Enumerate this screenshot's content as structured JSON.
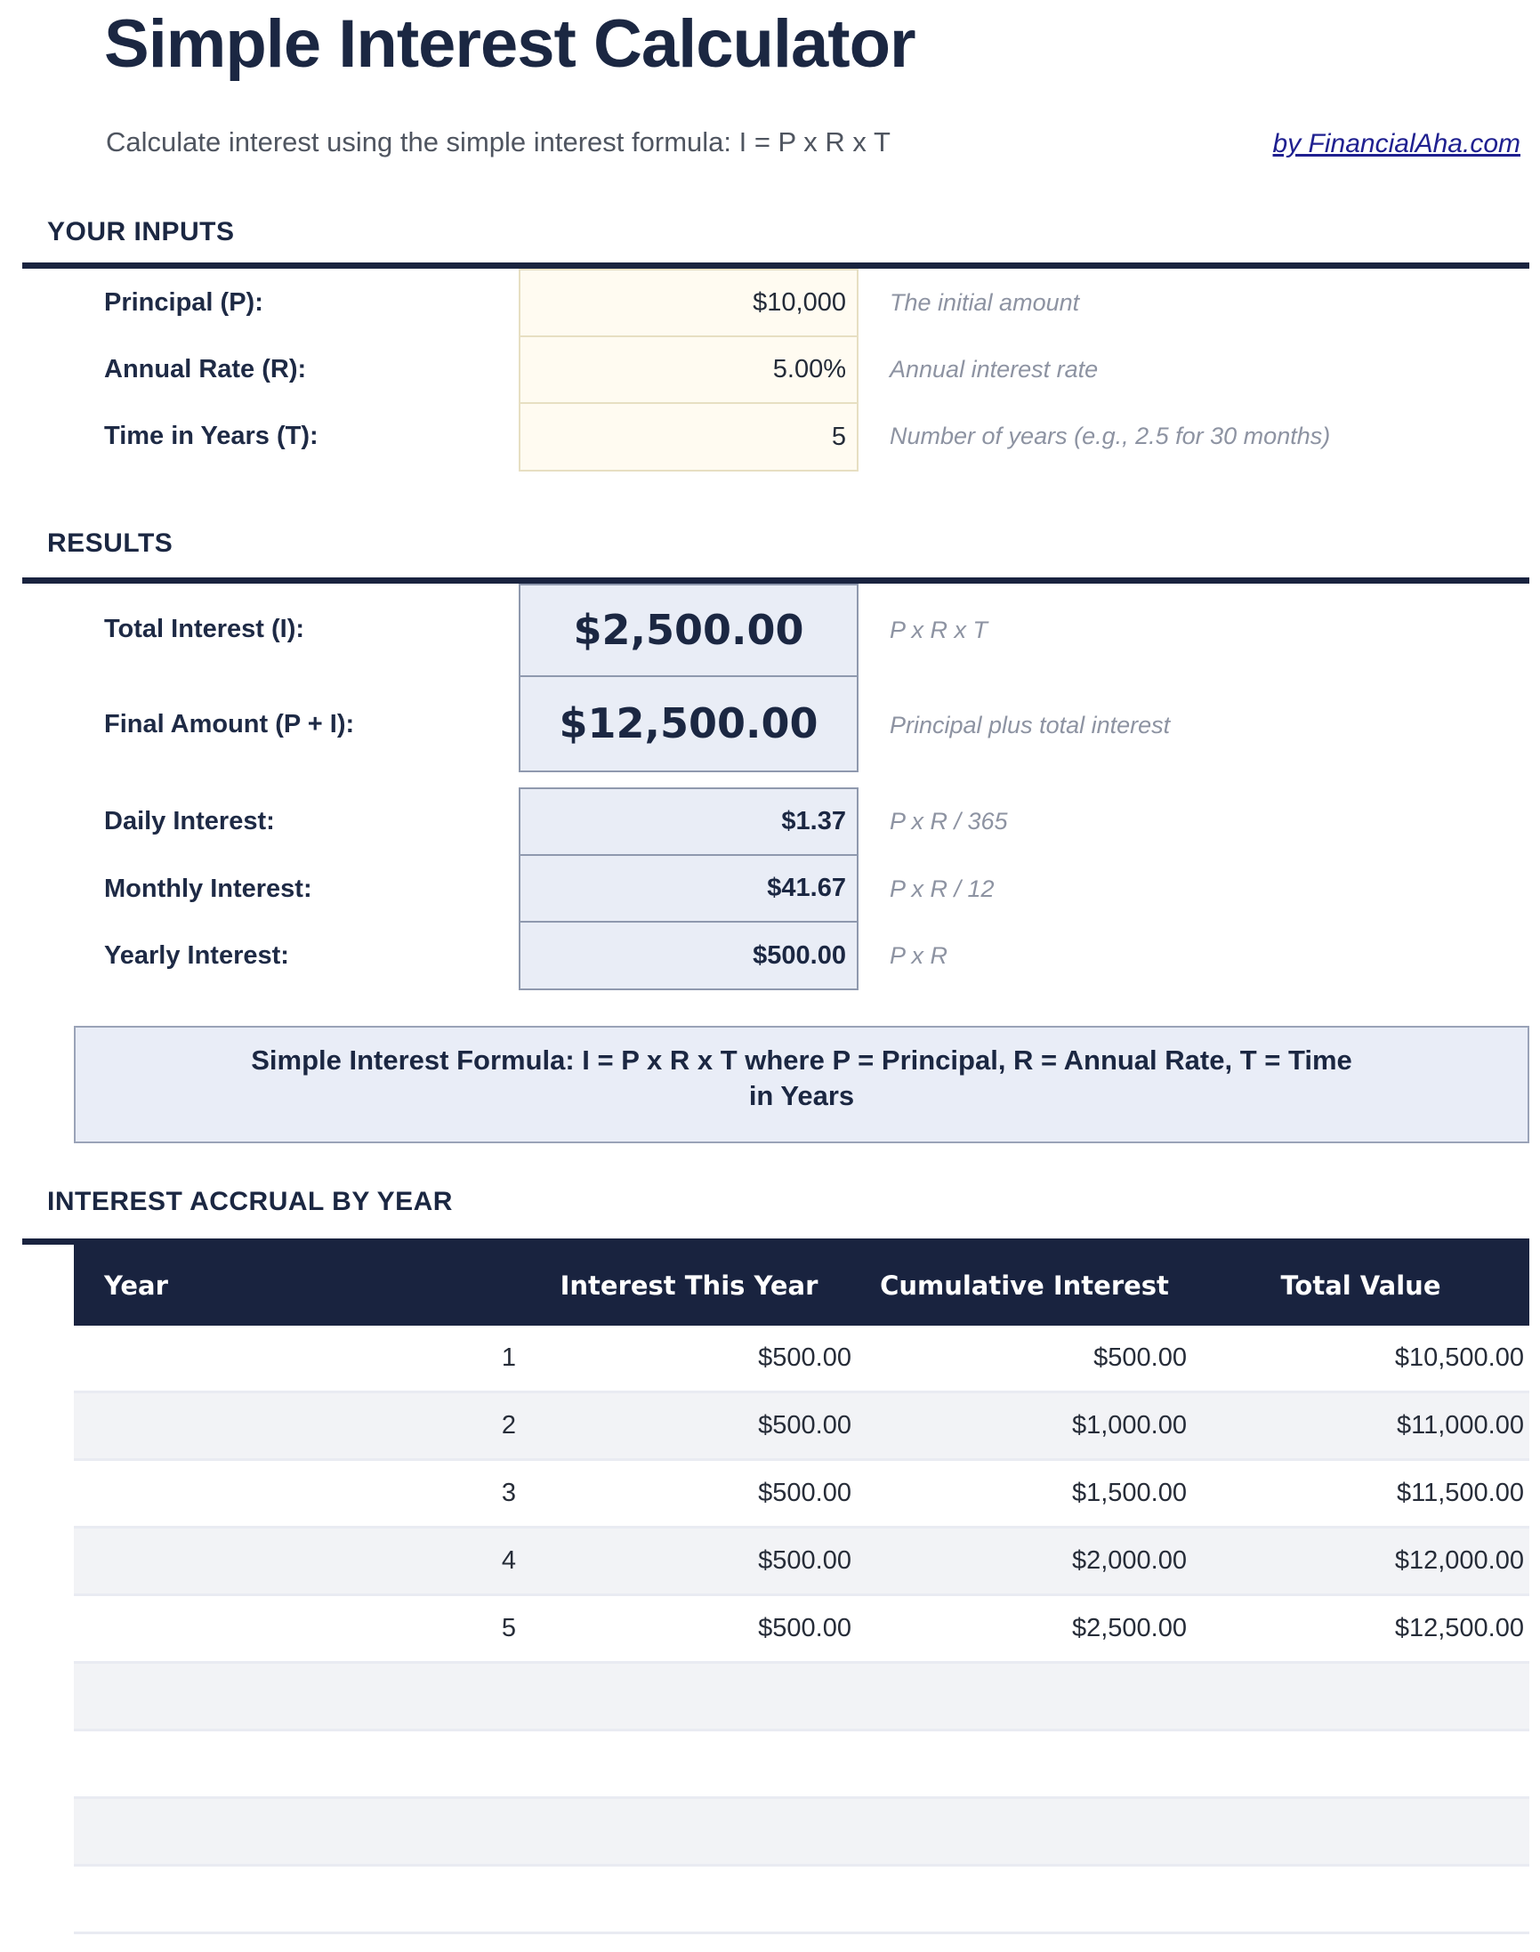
{
  "page": {
    "title": "Simple Interest Calculator",
    "subtitle": "Calculate interest using the simple interest formula: I = P x R x T",
    "credit_link": "by FinancialAha.com"
  },
  "inputs_section": {
    "heading": "YOUR INPUTS",
    "rows": [
      {
        "label": "Principal (P):",
        "value": "$10,000",
        "hint": "The initial amount"
      },
      {
        "label": "Annual Rate (R):",
        "value": "5.00%",
        "hint": "Annual interest rate"
      },
      {
        "label": "Time in Years (T):",
        "value": "5",
        "hint": "Number of years (e.g., 2.5 for 30 months)"
      }
    ]
  },
  "results_section": {
    "heading": "RESULTS",
    "primary": [
      {
        "label": "Total Interest (I):",
        "value": "$2,500.00",
        "hint": "P x R x T"
      },
      {
        "label": "Final Amount (P + I):",
        "value": "$12,500.00",
        "hint": "Principal plus total interest"
      }
    ],
    "secondary": [
      {
        "label": "Daily Interest:",
        "value": "$1.37",
        "hint": "P x R / 365"
      },
      {
        "label": "Monthly Interest:",
        "value": "$41.67",
        "hint": "P x R / 12"
      },
      {
        "label": "Yearly Interest:",
        "value": "$500.00",
        "hint": "P x R"
      }
    ]
  },
  "formula_banner": {
    "line1": "Simple Interest Formula:  I = P x R x T   where P = Principal, R = Annual Rate, T = Time",
    "line2": "in Years"
  },
  "table_section": {
    "heading": "INTEREST ACCRUAL BY YEAR",
    "columns": [
      "Year",
      "Interest This Year",
      "Cumulative Interest",
      "Total Value"
    ],
    "rows": [
      [
        "1",
        "$500.00",
        "$500.00",
        "$10,500.00"
      ],
      [
        "2",
        "$500.00",
        "$1,000.00",
        "$11,000.00"
      ],
      [
        "3",
        "$500.00",
        "$1,500.00",
        "$11,500.00"
      ],
      [
        "4",
        "$500.00",
        "$2,000.00",
        "$12,000.00"
      ],
      [
        "5",
        "$500.00",
        "$2,500.00",
        "$12,500.00"
      ]
    ],
    "empty_rows": 4
  },
  "colors": {
    "navy": "#19233f",
    "title_text": "#1b2742",
    "link_blue": "#1f2090",
    "input_bg": "#fffbf1",
    "input_border": "#e7dfc2",
    "result_bg": "#e9edf6",
    "result_border": "#8f99ae",
    "banner_bg": "#e9edf7",
    "stripe_gray": "#f2f3f6"
  }
}
